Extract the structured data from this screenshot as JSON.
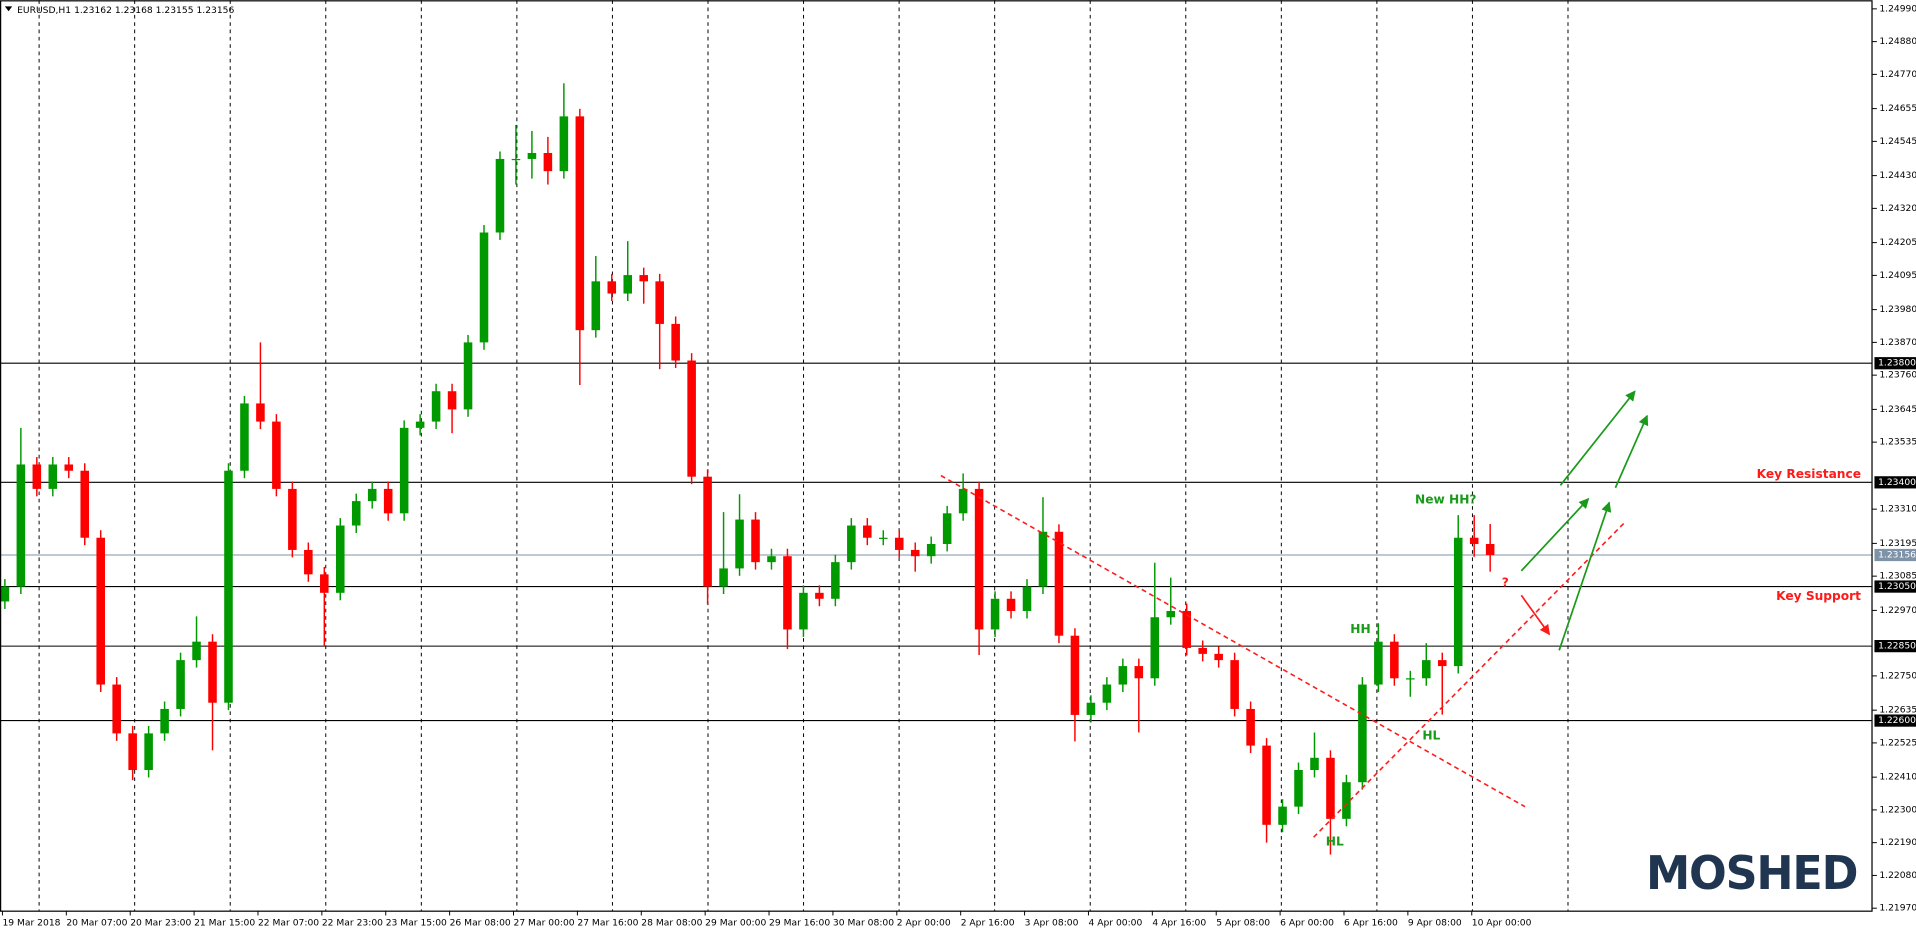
{
  "chart_data": {
    "type": "candlestick",
    "title": "EURUSD,H1",
    "ohlc_header": [
      1.23162,
      1.23168,
      1.23155,
      1.23156
    ],
    "up_color": "#009900",
    "down_color": "#ff0000",
    "ylim": [
      1.21962,
      1.25019
    ],
    "yticks": [
      {
        "value": 1.2499,
        "label": "1.24990"
      },
      {
        "value": 1.2488,
        "label": "1.24880"
      },
      {
        "value": 1.2477,
        "label": "1.24770"
      },
      1.24655,
      1.24545,
      {
        "value": 1.2443,
        "label": "1.24430"
      },
      {
        "value": 1.2432,
        "label": "1.24320"
      },
      1.24205,
      1.24095,
      {
        "value": 1.2398,
        "label": "1.23980"
      },
      {
        "value": 1.2387,
        "label": "1.23870"
      },
      {
        "value": 1.2376,
        "label": "1.23760"
      },
      1.23645,
      1.23535,
      {
        "value": 1.2331,
        "label": "1.23310"
      },
      1.23195,
      1.23085,
      {
        "value": 1.2297,
        "label": "1.22970"
      },
      {
        "value": 1.2275,
        "label": "1.22750"
      },
      1.22635,
      1.22525,
      {
        "value": 1.2241,
        "label": "1.22410"
      },
      {
        "value": 1.223,
        "label": "1.22300"
      },
      {
        "value": 1.2219,
        "label": "1.22190"
      },
      {
        "value": 1.2208,
        "label": "1.22080"
      },
      {
        "value": 1.2197,
        "label": "1.21970"
      }
    ],
    "levels": [
      {
        "value": 1.238,
        "label": "1.23800"
      },
      {
        "value": 1.234,
        "label": "1.23400"
      },
      {
        "value": 1.2305,
        "label": "1.23050"
      },
      {
        "value": 1.2285,
        "label": "1.22850"
      },
      {
        "value": 1.226,
        "label": "1.22600"
      }
    ],
    "last_price": 1.23156,
    "last_price_color": "#7f93a8",
    "time_labels": [
      "19 Mar 2018",
      "20 Mar 07:00",
      "20 Mar 23:00",
      "21 Mar 15:00",
      "22 Mar 07:00",
      "22 Mar 23:00",
      "23 Mar 15:00",
      "26 Mar 08:00",
      "27 Mar 00:00",
      "27 Mar 16:00",
      "28 Mar 08:00",
      "29 Mar 00:00",
      "29 Mar 16:00",
      "30 Mar 08:00",
      "2 Apr 00:00",
      "2 Apr 16:00",
      "3 Apr 08:00",
      "4 Apr 00:00",
      "4 Apr 16:00",
      "5 Apr 08:00",
      "6 Apr 00:00",
      "6 Apr 16:00",
      "9 Apr 08:00",
      "10 Apr 00:00"
    ],
    "open": [
      1.23,
      1.2305,
      1.2346,
      1.23378,
      1.2346,
      1.23439,
      1.23214,
      1.22721,
      1.22557,
      1.22434,
      1.22557,
      1.22639,
      1.22803,
      1.22865,
      1.2266,
      1.23439,
      1.23665,
      1.23604,
      1.23378,
      1.23173,
      1.23091,
      1.23029,
      1.23255,
      1.23337,
      1.23378,
      1.23296,
      1.23583,
      1.23604,
      1.23706,
      1.23645,
      1.2387,
      1.24239,
      1.24486,
      1.24486,
      1.24506,
      1.24445,
      1.24629,
      1.23911,
      1.24075,
      1.24034,
      1.24096,
      1.24075,
      1.23932,
      1.23809,
      1.23419,
      1.2305,
      1.23111,
      1.23275,
      1.23132,
      1.23152,
      1.22906,
      1.23029,
      1.23009,
      1.23132,
      1.23255,
      1.23214,
      1.23214,
      1.23173,
      1.23152,
      1.23193,
      1.23296,
      1.23378,
      1.22906,
      1.23009,
      1.22968,
      1.2305,
      1.23234,
      1.22885,
      1.22619,
      1.2266,
      1.22721,
      1.22783,
      1.22742,
      1.22947,
      1.22968,
      1.22844,
      1.22824,
      1.22803,
      1.22639,
      1.22516,
      1.2225,
      1.22311,
      1.22434,
      1.22475,
      1.2227,
      1.22393,
      1.22721,
      1.22865,
      1.22742,
      1.22742,
      1.22803,
      1.22783,
      1.23214,
      1.23193
    ],
    "high": [
      1.23075,
      1.23583,
      1.23485,
      1.23485,
      1.23485,
      1.23464,
      1.23239,
      1.22746,
      1.22582,
      1.22582,
      1.22664,
      1.22828,
      1.2295,
      1.2289,
      1.23464,
      1.2369,
      1.2387,
      1.23629,
      1.23403,
      1.23198,
      1.23116,
      1.2328,
      1.23362,
      1.23403,
      1.23403,
      1.23608,
      1.23629,
      1.23731,
      1.23731,
      1.23895,
      1.24264,
      1.24511,
      1.246,
      1.2458,
      1.2456,
      1.2474,
      1.24654,
      1.2416,
      1.241,
      1.2421,
      1.24121,
      1.241,
      1.23957,
      1.23834,
      1.23444,
      1.233,
      1.2336,
      1.233,
      1.23177,
      1.23177,
      1.23054,
      1.23054,
      1.23157,
      1.2328,
      1.2328,
      1.23239,
      1.23239,
      1.23198,
      1.23218,
      1.23321,
      1.2343,
      1.23403,
      1.23034,
      1.23034,
      1.23075,
      1.2335,
      1.23259,
      1.2291,
      1.22685,
      1.22746,
      1.22808,
      1.22808,
      1.2313,
      1.2308,
      1.22993,
      1.22869,
      1.22849,
      1.22828,
      1.22664,
      1.22541,
      1.22336,
      1.22459,
      1.2256,
      1.225,
      1.22418,
      1.22746,
      1.22927,
      1.2289,
      1.22767,
      1.2286,
      1.22828,
      1.2329,
      1.2329,
      1.2326
    ],
    "low": [
      1.22975,
      1.23025,
      1.23353,
      1.23353,
      1.23414,
      1.23189,
      1.22696,
      1.22532,
      1.224,
      1.22409,
      1.22532,
      1.22614,
      1.22778,
      1.225,
      1.22635,
      1.23414,
      1.23579,
      1.23353,
      1.23148,
      1.23066,
      1.2285,
      1.23004,
      1.2323,
      1.23312,
      1.23271,
      1.23271,
      1.23558,
      1.23579,
      1.23565,
      1.2362,
      1.23845,
      1.24214,
      1.244,
      1.2442,
      1.244,
      1.2442,
      1.23727,
      1.23886,
      1.24009,
      1.24009,
      1.24,
      1.2378,
      1.23784,
      1.23394,
      1.2299,
      1.23025,
      1.23086,
      1.23107,
      1.23107,
      1.2284,
      1.22881,
      1.22984,
      1.22984,
      1.23107,
      1.23189,
      1.23189,
      1.23148,
      1.231,
      1.23127,
      1.23168,
      1.23271,
      1.2282,
      1.22881,
      1.22943,
      1.22943,
      1.23025,
      1.2286,
      1.2253,
      1.22594,
      1.22635,
      1.22696,
      1.2256,
      1.22717,
      1.22922,
      1.22819,
      1.22799,
      1.22778,
      1.22614,
      1.22491,
      1.2219,
      1.22225,
      1.22286,
      1.22409,
      1.2215,
      1.22245,
      1.22368,
      1.22696,
      1.22717,
      1.2268,
      1.22717,
      1.2262,
      1.22758,
      1.2315,
      1.231
    ],
    "close": [
      1.2305,
      1.2346,
      1.23378,
      1.2346,
      1.23439,
      1.23214,
      1.22721,
      1.22557,
      1.22434,
      1.22557,
      1.22639,
      1.22803,
      1.22865,
      1.2266,
      1.23439,
      1.23665,
      1.23604,
      1.23378,
      1.23173,
      1.23091,
      1.23029,
      1.23255,
      1.23337,
      1.23378,
      1.23296,
      1.23583,
      1.23604,
      1.23706,
      1.23645,
      1.2387,
      1.24239,
      1.24486,
      1.24486,
      1.24506,
      1.24445,
      1.24629,
      1.23911,
      1.24075,
      1.24034,
      1.24096,
      1.24075,
      1.23932,
      1.23809,
      1.23419,
      1.2305,
      1.23111,
      1.23275,
      1.23132,
      1.23152,
      1.22906,
      1.23029,
      1.23009,
      1.23132,
      1.23255,
      1.23214,
      1.23214,
      1.23173,
      1.23152,
      1.23193,
      1.23296,
      1.23378,
      1.22906,
      1.23009,
      1.22968,
      1.2305,
      1.23234,
      1.22885,
      1.22619,
      1.2266,
      1.22721,
      1.22783,
      1.22742,
      1.22947,
      1.22968,
      1.22844,
      1.22824,
      1.22803,
      1.22639,
      1.22516,
      1.2225,
      1.22311,
      1.22434,
      1.22475,
      1.2227,
      1.22393,
      1.22721,
      1.22865,
      1.22742,
      1.22742,
      1.22803,
      1.22783,
      1.23214,
      1.23193,
      1.23156
    ],
    "annotations": [
      "Key Resistance",
      "Key Support",
      "New HH?",
      "HH",
      "HL",
      "HL",
      "?"
    ],
    "logo": "MOSHED"
  }
}
